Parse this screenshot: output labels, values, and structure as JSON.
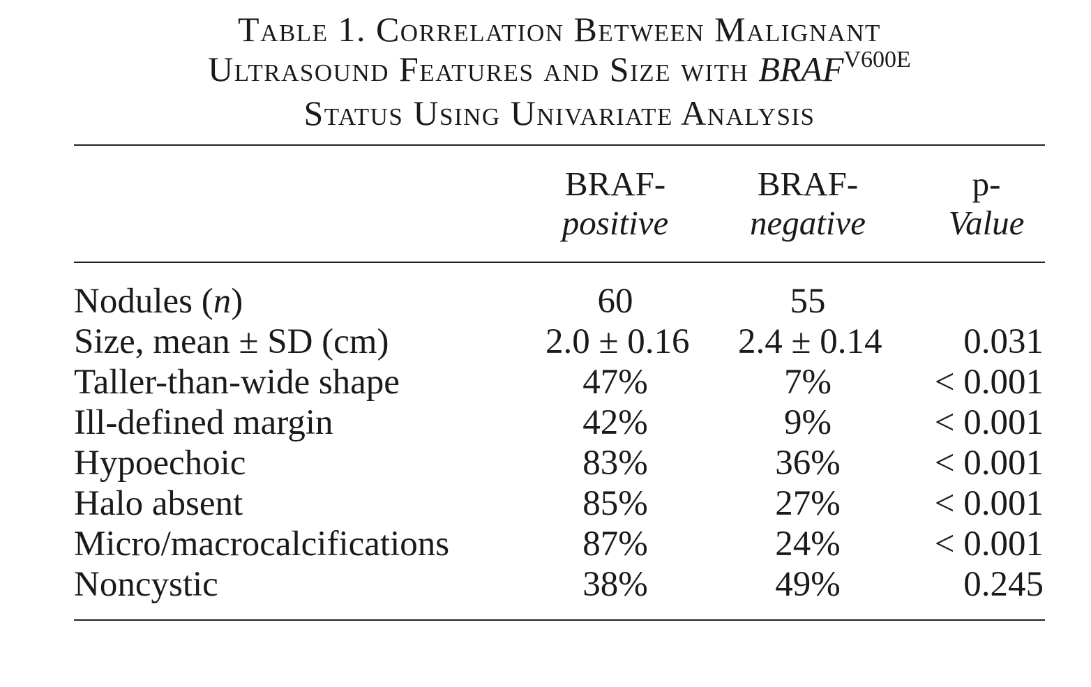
{
  "caption": {
    "line1": "Table 1. Correlation Between Malignant",
    "line2_text": "Ultrasound Features and Size with ",
    "line2_gene": "BRAF",
    "line2_sup": "V600E",
    "line3": "Status Using Univariate Analysis"
  },
  "headers": {
    "col1": {
      "line1": "BRAF-",
      "line2": "positive"
    },
    "col2": {
      "line1": "BRAF-",
      "line2": "negative"
    },
    "col3": {
      "line1": "p-",
      "line2": "Value"
    }
  },
  "rows": [
    {
      "label_pre": "Nodules (",
      "label_it": "n",
      "label_post": ")",
      "positive": "60",
      "negative": "55",
      "p": ""
    },
    {
      "label": "Size, mean ± SD (cm)",
      "positive": "2.0 ± 0.16",
      "negative": "2.4 ± 0.14",
      "p": "0.031"
    },
    {
      "label": "Taller-than-wide shape",
      "positive": "47%",
      "negative": "7%",
      "p": "< 0.001"
    },
    {
      "label": "Ill-defined margin",
      "positive": "42%",
      "negative": "9%",
      "p": "< 0.001"
    },
    {
      "label": "Hypoechoic",
      "positive": "83%",
      "negative": "36%",
      "p": "< 0.001"
    },
    {
      "label": "Halo absent",
      "positive": "85%",
      "negative": "27%",
      "p": "< 0.001"
    },
    {
      "label": "Micro/macrocalcifications",
      "positive": "87%",
      "negative": "24%",
      "p": "< 0.001"
    },
    {
      "label": "Noncystic",
      "positive": "38%",
      "negative": "49%",
      "p": "0.245"
    }
  ]
}
